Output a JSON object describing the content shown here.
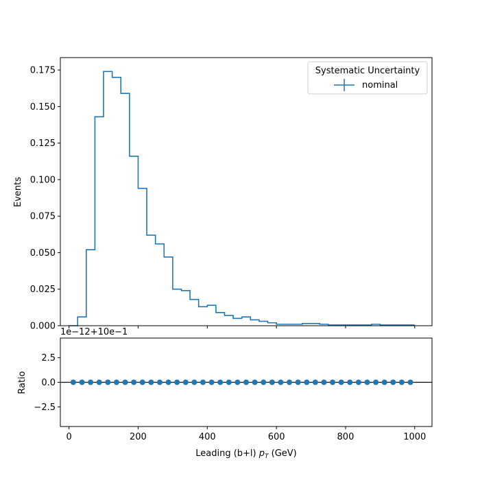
{
  "chart_data": [
    {
      "type": "histogram",
      "ylabel": "Events",
      "xlim": [
        -25,
        1050
      ],
      "ylim": [
        0,
        0.1835
      ],
      "y_ticks": [
        0.0,
        0.025,
        0.05,
        0.075,
        0.1,
        0.125,
        0.15,
        0.175
      ],
      "y_tick_labels": [
        "0.000",
        "0.025",
        "0.050",
        "0.075",
        "0.100",
        "0.125",
        "0.150",
        "0.175"
      ],
      "x_ticks": [
        0,
        200,
        400,
        600,
        800,
        1000
      ],
      "legend": {
        "title": "Systematic Uncertainty",
        "placement": "top-right",
        "entries": [
          "nominal"
        ]
      },
      "series": [
        {
          "name": "nominal",
          "bin_edges": [
            0,
            25,
            50,
            75,
            100,
            125,
            150,
            175,
            200,
            225,
            250,
            275,
            300,
            325,
            350,
            375,
            400,
            425,
            450,
            475,
            500,
            525,
            550,
            575,
            600,
            625,
            650,
            675,
            700,
            725,
            750,
            775,
            800,
            825,
            850,
            875,
            900,
            925,
            950,
            975,
            1000
          ],
          "values": [
            0.0,
            0.006,
            0.052,
            0.143,
            0.174,
            0.17,
            0.159,
            0.116,
            0.094,
            0.062,
            0.056,
            0.047,
            0.025,
            0.024,
            0.018,
            0.013,
            0.014,
            0.009,
            0.007,
            0.005,
            0.006,
            0.004,
            0.003,
            0.002,
            0.001,
            0.001,
            0.001,
            0.0015,
            0.0015,
            0.001,
            0.0005,
            0.0005,
            0.0005,
            0.0005,
            0.0005,
            0.001,
            0.0005,
            0.0005,
            0.0005,
            0.0005
          ]
        }
      ]
    },
    {
      "type": "scatter",
      "ylabel": "Ratio",
      "xlabel": "Leading (b+l) p_T (GeV)",
      "xlabel_parts": {
        "prefix": "Leading (b+l) ",
        "symbol": "p",
        "subscript": "T",
        "suffix": " (GeV)"
      },
      "offset_text": "1e−12+10e−1",
      "xlim": [
        -25,
        1050
      ],
      "ylim": [
        -4.5,
        4.5
      ],
      "y_ticks": [
        -2.5,
        0.0,
        2.5
      ],
      "y_tick_labels": [
        "−2.5",
        "0.0",
        "2.5"
      ],
      "x_ticks": [
        0,
        200,
        400,
        600,
        800,
        1000
      ],
      "x_tick_labels": [
        "0",
        "200",
        "400",
        "600",
        "800",
        "1000"
      ],
      "reference_line": 0.0,
      "series": [
        {
          "x": [
            12.5,
            37.5,
            62.5,
            87.5,
            112.5,
            137.5,
            162.5,
            187.5,
            212.5,
            237.5,
            262.5,
            287.5,
            312.5,
            337.5,
            362.5,
            387.5,
            412.5,
            437.5,
            462.5,
            487.5,
            512.5,
            537.5,
            562.5,
            587.5,
            612.5,
            637.5,
            662.5,
            687.5,
            712.5,
            737.5,
            762.5,
            787.5,
            812.5,
            837.5,
            862.5,
            887.5,
            912.5,
            937.5,
            962.5,
            987.5
          ],
          "y": [
            0,
            0,
            0,
            0,
            0,
            0,
            0,
            0,
            0,
            0,
            0,
            0,
            0,
            0,
            0,
            0,
            0,
            0,
            0,
            0,
            0,
            0,
            0,
            0,
            0,
            0,
            0,
            0,
            0,
            0,
            0,
            0,
            0,
            0,
            0,
            0,
            0,
            0,
            0,
            0
          ]
        }
      ]
    }
  ],
  "colors": {
    "series": "#1f77b4",
    "axes": "#000000",
    "background": "#ffffff"
  }
}
